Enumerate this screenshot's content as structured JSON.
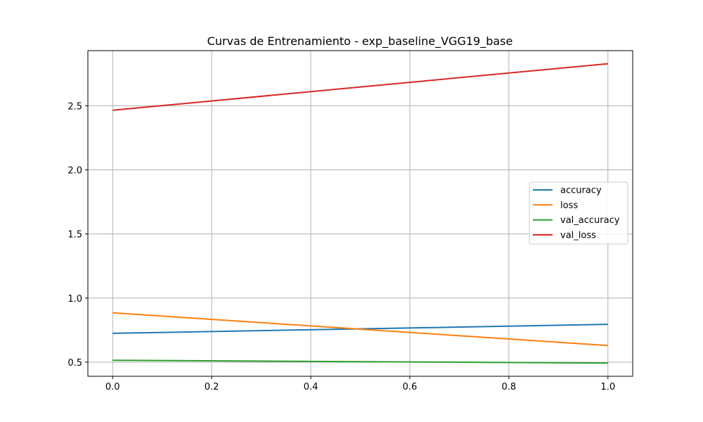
{
  "chart_data": {
    "type": "line",
    "title": "Curvas de Entrenamiento - exp_baseline_VGG19_base",
    "xlabel": "",
    "ylabel": "",
    "xlim": [
      -0.05,
      1.05
    ],
    "ylim": [
      0.39,
      2.93
    ],
    "x_ticks": [
      0.0,
      0.2,
      0.4,
      0.6,
      0.8,
      1.0
    ],
    "x_tick_labels": [
      "0.0",
      "0.2",
      "0.4",
      "0.6",
      "0.8",
      "1.0"
    ],
    "y_ticks": [
      0.5,
      1.0,
      1.5,
      2.0,
      2.5
    ],
    "y_tick_labels": [
      "0.5",
      "1.0",
      "1.5",
      "2.0",
      "2.5"
    ],
    "grid": true,
    "legend_position": "center-right",
    "x": [
      0.0,
      1.0
    ],
    "series": [
      {
        "name": "accuracy",
        "color": "#1f77b4",
        "values": [
          0.725,
          0.795
        ]
      },
      {
        "name": "loss",
        "color": "#ff7f0e",
        "values": [
          0.885,
          0.63
        ]
      },
      {
        "name": "val_accuracy",
        "color": "#2ca02c",
        "values": [
          0.515,
          0.493
        ]
      },
      {
        "name": "val_loss",
        "color": "#d62728",
        "values": [
          2.465,
          2.828
        ]
      }
    ]
  }
}
